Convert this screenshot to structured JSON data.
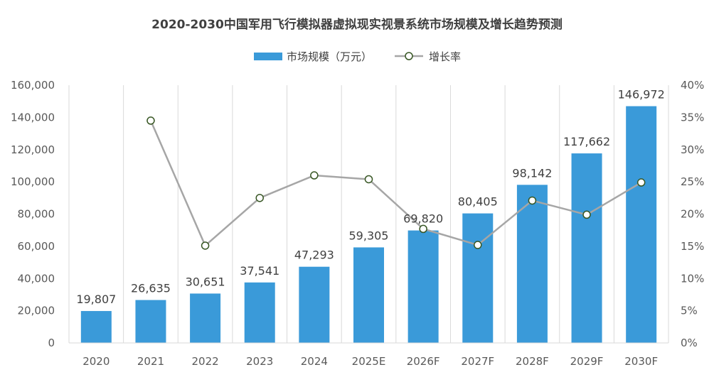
{
  "chart_data": {
    "type": "bar",
    "title": "2020-2030中国军用飞行模拟器虚拟现实视景系统市场规模及增长趋势预测",
    "categories": [
      "2020",
      "2021",
      "2022",
      "2023",
      "2024",
      "2025E",
      "2026F",
      "2027F",
      "2028F",
      "2029F",
      "2030F"
    ],
    "series": [
      {
        "name": "市场规模（万元）",
        "type": "bar",
        "axis": "left",
        "color": "#3a9ad9",
        "values": [
          19807,
          26635,
          30651,
          37541,
          47293,
          59305,
          69820,
          80405,
          98142,
          117662,
          146972
        ],
        "labels": [
          "19,807",
          "26,635",
          "30,651",
          "37,541",
          "47,293",
          "59,305",
          "69,820",
          "80,405",
          "98,142",
          "117,662",
          "146,972"
        ]
      },
      {
        "name": "增长率",
        "type": "line",
        "axis": "right",
        "color": "#a6a6a6",
        "marker_edge_color": "#375623",
        "values": [
          null,
          34.5,
          15.1,
          22.5,
          26.0,
          25.4,
          17.7,
          15.2,
          22.1,
          19.9,
          24.9
        ]
      }
    ],
    "ylim": [
      0,
      160000
    ],
    "y2lim": [
      0,
      40
    ],
    "y_ticks": [
      "0",
      "20,000",
      "40,000",
      "60,000",
      "80,000",
      "100,000",
      "120,000",
      "140,000",
      "160,000"
    ],
    "y2_ticks": [
      "0%",
      "5%",
      "10%",
      "15%",
      "20%",
      "25%",
      "30%",
      "35%",
      "40%"
    ],
    "grid": "vertical",
    "legend_position": "top-center"
  }
}
